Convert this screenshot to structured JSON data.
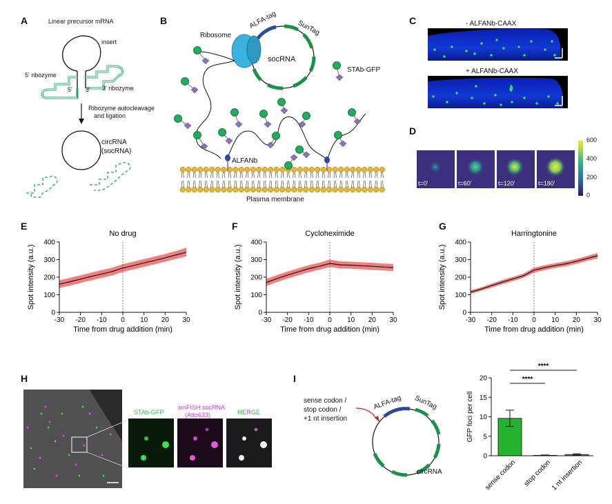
{
  "panels": {
    "A": {
      "letter": "A",
      "title": "Linear precursor mRNA",
      "insert": "insert",
      "ribozyme5": "5' ribozyme",
      "ribozyme3": "3' ribozyme",
      "end5": "5'",
      "end3": "3'",
      "step_line1": "Ribozyme autocleavage",
      "step_line2": "and ligation",
      "circ_line1": "circRNA",
      "circ_line2": "(socRNA)"
    },
    "B": {
      "letter": "B",
      "ribosome": "Ribosome",
      "alfa_tag": "ALFA-tag",
      "suntag": "SunTag",
      "socrna": "socRNA",
      "stab_gfp": "STAb-GFP",
      "alfanb": "ALFANb",
      "membrane": "Plasma membrane"
    },
    "C": {
      "letter": "C",
      "minus": "- ALFANb-CAAX",
      "plus": "+ ALFANb-CAAX"
    },
    "D": {
      "letter": "D",
      "frames": [
        "t=0'",
        "t=60'",
        "t=120'",
        "t=180'"
      ],
      "colorbar_ticks": [
        "600",
        "400",
        "200",
        "0"
      ]
    },
    "H": {
      "letter": "H",
      "labels": {
        "stab": "STAb-GFP",
        "smfish1": "smFISH socRNA",
        "smfish2": "(Atto633)",
        "merge_a": "ME",
        "merge_b": "R",
        "merge_c": "GE"
      }
    },
    "I": {
      "letter": "I",
      "mut_line1": "sense codon /",
      "mut_line2": "stop codon /",
      "mut_line3": "+1 nt insertion",
      "alfa_tag": "ALFA-tag",
      "suntag": "SunTag",
      "circrna": "circRNA"
    }
  },
  "colors": {
    "ribozyme_green": "#1aa55a",
    "suntag_green": "#1e8f46",
    "alfa_blue": "#2a4aa0",
    "ribosome_cyan": "#3bb3e0",
    "band_red": "#f27e7e",
    "bar_green": "#25b32e",
    "membrane_gold": "#e6b732"
  },
  "chart_data": [
    {
      "panel": "E",
      "type": "line",
      "title": "No drug",
      "xlabel": "Time from drug addition (min)",
      "ylabel": "Spot intensity (a.u.)",
      "xlim": [
        -30,
        30
      ],
      "ylim": [
        0,
        400
      ],
      "xticks": [
        -30,
        -20,
        -10,
        0,
        10,
        20,
        30
      ],
      "yticks": [
        0,
        100,
        200,
        300,
        400
      ],
      "vline_x": 0,
      "x": [
        -30,
        -25,
        -20,
        -15,
        -10,
        -5,
        0,
        5,
        10,
        15,
        20,
        25,
        30
      ],
      "mean": [
        160,
        174,
        189,
        204,
        218,
        232,
        252,
        266,
        281,
        295,
        310,
        326,
        342
      ],
      "sem_low": [
        138,
        152,
        167,
        182,
        196,
        210,
        230,
        244,
        259,
        273,
        288,
        304,
        318
      ],
      "sem_high": [
        182,
        196,
        211,
        226,
        240,
        254,
        274,
        288,
        303,
        317,
        332,
        348,
        368
      ]
    },
    {
      "panel": "F",
      "type": "line",
      "title": "Cycloheximide",
      "xlabel": "Time from drug addition (min)",
      "ylabel": "Spot intensity (a.u.)",
      "xlim": [
        -30,
        30
      ],
      "ylim": [
        0,
        400
      ],
      "xticks": [
        -30,
        -20,
        -10,
        0,
        10,
        20,
        30
      ],
      "yticks": [
        0,
        100,
        200,
        300,
        400
      ],
      "vline_x": 0,
      "x": [
        -30,
        -25,
        -20,
        -15,
        -10,
        -5,
        0,
        5,
        10,
        15,
        20,
        25,
        30
      ],
      "mean": [
        170,
        192,
        212,
        230,
        248,
        262,
        278,
        270,
        268,
        265,
        262,
        258,
        255
      ],
      "sem_low": [
        150,
        172,
        192,
        210,
        228,
        242,
        258,
        250,
        248,
        245,
        242,
        238,
        235
      ],
      "sem_high": [
        190,
        212,
        232,
        250,
        268,
        282,
        300,
        290,
        288,
        285,
        282,
        278,
        275
      ]
    },
    {
      "panel": "G",
      "type": "line",
      "title": "Harringtonine",
      "xlabel": "Time from drug addition (min)",
      "ylabel": "Spot intensity (a.u.)",
      "xlim": [
        -30,
        30
      ],
      "ylim": [
        0,
        400
      ],
      "xticks": [
        -30,
        -20,
        -10,
        0,
        10,
        20,
        30
      ],
      "yticks": [
        0,
        100,
        200,
        300,
        400
      ],
      "vline_x": 0,
      "x": [
        -30,
        -25,
        -20,
        -15,
        -10,
        -5,
        0,
        5,
        10,
        15,
        20,
        25,
        30
      ],
      "mean": [
        115,
        132,
        152,
        172,
        190,
        208,
        240,
        254,
        266,
        276,
        290,
        306,
        322
      ],
      "sem_low": [
        105,
        122,
        141,
        160,
        178,
        196,
        226,
        240,
        252,
        262,
        276,
        292,
        306
      ],
      "sem_high": [
        125,
        142,
        163,
        184,
        202,
        220,
        254,
        268,
        280,
        290,
        304,
        320,
        338
      ]
    },
    {
      "panel": "I",
      "type": "bar",
      "ylabel": "GFP foci per cell",
      "categories": [
        "sense codon",
        "stop codon",
        "1 nt insertion"
      ],
      "values": [
        9.6,
        0.1,
        0.3
      ],
      "errors": [
        2.1,
        0.1,
        0.2
      ],
      "ylim": [
        0,
        20
      ],
      "yticks": [
        0,
        5,
        10,
        15,
        20
      ],
      "significance": [
        {
          "from": 0,
          "to": 1,
          "label": "****"
        },
        {
          "from": 0,
          "to": 2,
          "label": "****"
        }
      ]
    }
  ]
}
